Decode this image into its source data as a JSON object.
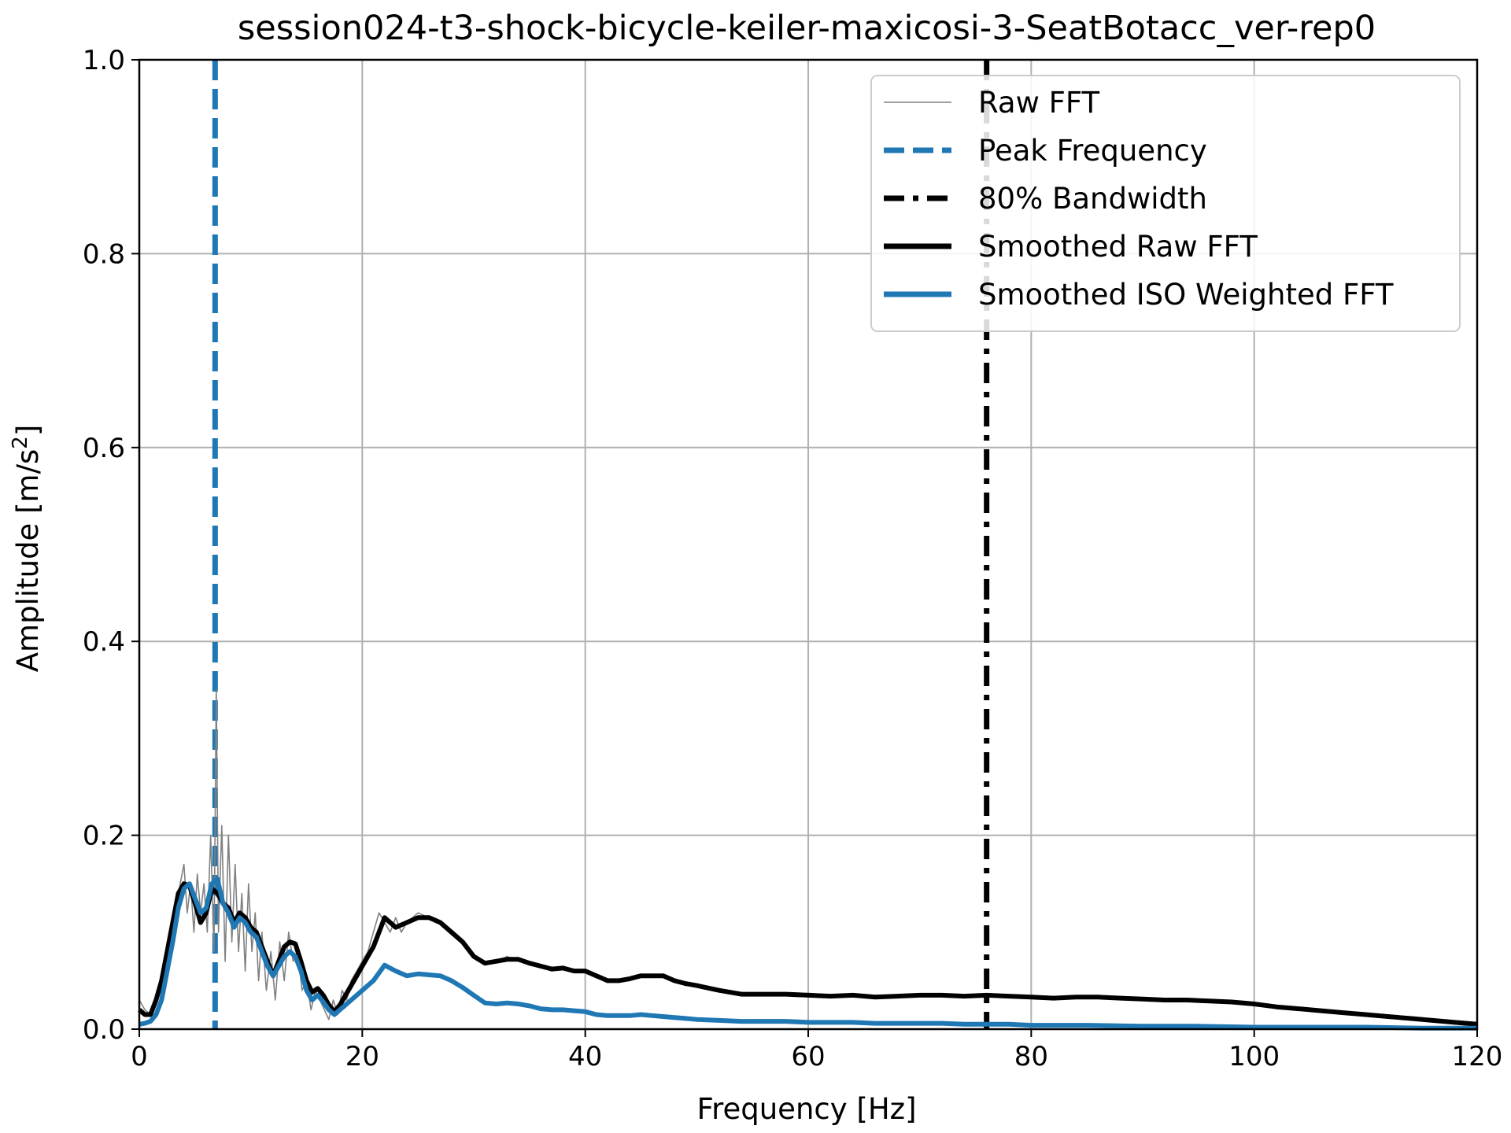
{
  "chart_data": {
    "type": "line",
    "title": "session024-t3-shock-bicycle-keiler-maxicosi-3-SeatBotacc_ver-rep0",
    "xlabel": "Frequency [Hz]",
    "ylabel_main": "Amplitude [m/s",
    "ylabel_sup": "2",
    "ylabel_end": "]",
    "xlim": [
      0,
      120
    ],
    "ylim": [
      0,
      1.0
    ],
    "xticks": [
      0,
      20,
      40,
      60,
      80,
      100,
      120
    ],
    "xtick_labels": [
      "0",
      "20",
      "40",
      "60",
      "80",
      "100",
      "120"
    ],
    "yticks": [
      0.0,
      0.2,
      0.4,
      0.6,
      0.8,
      1.0
    ],
    "ytick_labels": [
      "0.0",
      "0.2",
      "0.4",
      "0.6",
      "0.8",
      "1.0"
    ],
    "grid": true,
    "legend_position": "upper right",
    "peak_frequency": 6.8,
    "bandwidth_80": 76.0,
    "series": [
      {
        "name": "Raw FFT",
        "color": "#808080",
        "style": "thin",
        "x": [
          0,
          0.5,
          1,
          1.5,
          2,
          2.5,
          3,
          3.5,
          4,
          4.3,
          4.6,
          4.9,
          5.2,
          5.5,
          5.8,
          6.1,
          6.4,
          6.7,
          6.9,
          7.1,
          7.4,
          7.7,
          8,
          8.3,
          8.6,
          8.9,
          9.2,
          9.5,
          9.8,
          10.1,
          10.4,
          10.7,
          11,
          11.4,
          11.8,
          12.2,
          12.6,
          13,
          13.4,
          13.8,
          14.2,
          14.6,
          15,
          15.4,
          15.8,
          16.2,
          16.6,
          17,
          17.4,
          17.8,
          18.2,
          18.6,
          19,
          19.5,
          20,
          20.5,
          21,
          21.5,
          22,
          22.5,
          23,
          23.5,
          24,
          25,
          26,
          27,
          28,
          29,
          30,
          31,
          32,
          33,
          34,
          35,
          36,
          37,
          38,
          39,
          40,
          41,
          42,
          43,
          44,
          45,
          46,
          47,
          48,
          49,
          50,
          52,
          54,
          56,
          58,
          60,
          62,
          64,
          66,
          68,
          70,
          72,
          74,
          76,
          78,
          80,
          82,
          84,
          86,
          88,
          90,
          92,
          94,
          96,
          98,
          100,
          102,
          104,
          106,
          108,
          110,
          112,
          114,
          116,
          118,
          120
        ],
        "y": [
          0.03,
          0.02,
          0.015,
          0.03,
          0.05,
          0.08,
          0.1,
          0.14,
          0.17,
          0.12,
          0.15,
          0.1,
          0.16,
          0.12,
          0.15,
          0.1,
          0.2,
          0.08,
          0.35,
          0.1,
          0.21,
          0.07,
          0.2,
          0.09,
          0.17,
          0.08,
          0.14,
          0.06,
          0.15,
          0.08,
          0.12,
          0.05,
          0.1,
          0.04,
          0.08,
          0.03,
          0.09,
          0.05,
          0.1,
          0.07,
          0.08,
          0.04,
          0.05,
          0.02,
          0.04,
          0.03,
          0.02,
          0.01,
          0.03,
          0.015,
          0.04,
          0.03,
          0.05,
          0.06,
          0.07,
          0.08,
          0.1,
          0.12,
          0.11,
          0.1,
          0.115,
          0.1,
          0.11,
          0.12,
          0.115,
          0.11,
          0.1,
          0.09,
          0.075,
          0.07,
          0.07,
          0.075,
          0.07,
          0.07,
          0.065,
          0.06,
          0.065,
          0.06,
          0.06,
          0.055,
          0.05,
          0.05,
          0.05,
          0.055,
          0.055,
          0.055,
          0.05,
          0.045,
          0.045,
          0.04,
          0.035,
          0.035,
          0.035,
          0.037,
          0.035,
          0.034,
          0.035,
          0.033,
          0.034,
          0.035,
          0.034,
          0.035,
          0.034,
          0.033,
          0.033,
          0.033,
          0.033,
          0.032,
          0.031,
          0.03,
          0.03,
          0.029,
          0.028,
          0.026,
          0.023,
          0.021,
          0.019,
          0.017,
          0.015,
          0.013,
          0.011,
          0.009,
          0.007,
          0.005
        ]
      },
      {
        "name": "Smoothed Raw FFT",
        "color": "#000000",
        "style": "solid",
        "x": [
          0,
          0.5,
          1,
          1.5,
          2,
          2.5,
          3,
          3.5,
          4,
          4.5,
          5,
          5.5,
          6,
          6.5,
          7,
          7.5,
          8,
          8.5,
          9,
          9.5,
          10,
          10.5,
          11,
          11.5,
          12,
          12.5,
          13,
          13.5,
          14,
          14.5,
          15,
          15.5,
          16,
          16.5,
          17,
          17.5,
          18,
          18.5,
          19,
          19.5,
          20,
          21,
          22,
          23,
          24,
          25,
          26,
          27,
          28,
          29,
          30,
          31,
          32,
          33,
          34,
          35,
          36,
          37,
          38,
          39,
          40,
          41,
          42,
          43,
          44,
          45,
          46,
          47,
          48,
          49,
          50,
          52,
          54,
          56,
          58,
          60,
          62,
          64,
          66,
          68,
          70,
          72,
          74,
          76,
          78,
          80,
          82,
          84,
          86,
          88,
          90,
          92,
          94,
          96,
          98,
          100,
          102,
          104,
          106,
          108,
          110,
          112,
          114,
          116,
          118,
          120
        ],
        "y": [
          0.02,
          0.015,
          0.015,
          0.03,
          0.05,
          0.08,
          0.11,
          0.14,
          0.15,
          0.148,
          0.13,
          0.11,
          0.12,
          0.145,
          0.14,
          0.13,
          0.125,
          0.11,
          0.12,
          0.115,
          0.105,
          0.1,
          0.085,
          0.07,
          0.055,
          0.07,
          0.085,
          0.09,
          0.088,
          0.07,
          0.05,
          0.038,
          0.042,
          0.035,
          0.025,
          0.018,
          0.025,
          0.035,
          0.045,
          0.055,
          0.065,
          0.085,
          0.115,
          0.105,
          0.11,
          0.115,
          0.115,
          0.11,
          0.1,
          0.09,
          0.075,
          0.068,
          0.07,
          0.072,
          0.072,
          0.068,
          0.065,
          0.062,
          0.063,
          0.06,
          0.06,
          0.055,
          0.05,
          0.05,
          0.052,
          0.055,
          0.055,
          0.055,
          0.05,
          0.047,
          0.045,
          0.04,
          0.036,
          0.036,
          0.036,
          0.035,
          0.034,
          0.035,
          0.033,
          0.034,
          0.035,
          0.035,
          0.034,
          0.035,
          0.034,
          0.033,
          0.032,
          0.033,
          0.033,
          0.032,
          0.031,
          0.03,
          0.03,
          0.029,
          0.028,
          0.026,
          0.023,
          0.021,
          0.019,
          0.017,
          0.015,
          0.013,
          0.011,
          0.009,
          0.007,
          0.005
        ]
      },
      {
        "name": "Smoothed ISO Weighted FFT",
        "color": "#1f77b4",
        "style": "solid",
        "x": [
          0,
          0.5,
          1,
          1.5,
          2,
          2.5,
          3,
          3.5,
          4,
          4.5,
          5,
          5.5,
          6,
          6.5,
          7,
          7.5,
          8,
          8.5,
          9,
          9.5,
          10,
          10.5,
          11,
          11.5,
          12,
          12.5,
          13,
          13.5,
          14,
          14.5,
          15,
          15.5,
          16,
          16.5,
          17,
          17.5,
          18,
          18.5,
          19,
          19.5,
          20,
          21,
          22,
          23,
          24,
          25,
          26,
          27,
          28,
          29,
          30,
          31,
          32,
          33,
          34,
          35,
          36,
          37,
          38,
          39,
          40,
          41,
          42,
          43,
          44,
          45,
          46,
          47,
          48,
          49,
          50,
          52,
          54,
          56,
          58,
          60,
          62,
          64,
          66,
          68,
          70,
          72,
          74,
          76,
          78,
          80,
          85,
          90,
          95,
          100,
          105,
          110,
          115,
          120
        ],
        "y": [
          0.005,
          0.006,
          0.008,
          0.015,
          0.03,
          0.06,
          0.09,
          0.125,
          0.145,
          0.15,
          0.135,
          0.12,
          0.125,
          0.15,
          0.155,
          0.13,
          0.12,
          0.105,
          0.115,
          0.11,
          0.1,
          0.095,
          0.08,
          0.065,
          0.055,
          0.065,
          0.075,
          0.08,
          0.075,
          0.06,
          0.04,
          0.03,
          0.035,
          0.028,
          0.02,
          0.015,
          0.02,
          0.025,
          0.03,
          0.035,
          0.04,
          0.05,
          0.066,
          0.06,
          0.055,
          0.057,
          0.056,
          0.055,
          0.05,
          0.043,
          0.035,
          0.027,
          0.026,
          0.027,
          0.026,
          0.024,
          0.021,
          0.02,
          0.02,
          0.019,
          0.018,
          0.015,
          0.014,
          0.014,
          0.014,
          0.015,
          0.014,
          0.013,
          0.012,
          0.011,
          0.01,
          0.009,
          0.008,
          0.008,
          0.008,
          0.007,
          0.007,
          0.007,
          0.006,
          0.006,
          0.006,
          0.006,
          0.005,
          0.005,
          0.005,
          0.004,
          0.004,
          0.003,
          0.003,
          0.002,
          0.002,
          0.002,
          0.001,
          0.001
        ]
      }
    ],
    "legend": [
      {
        "label": "Raw FFT",
        "color": "#808080",
        "style": "thin"
      },
      {
        "label": "Peak Frequency",
        "color": "#1f77b4",
        "style": "dashed"
      },
      {
        "label": "80% Bandwidth",
        "color": "#000000",
        "style": "dashdot"
      },
      {
        "label": "Smoothed Raw FFT",
        "color": "#000000",
        "style": "solid"
      },
      {
        "label": "Smoothed ISO Weighted FFT",
        "color": "#1f77b4",
        "style": "solid"
      }
    ]
  }
}
